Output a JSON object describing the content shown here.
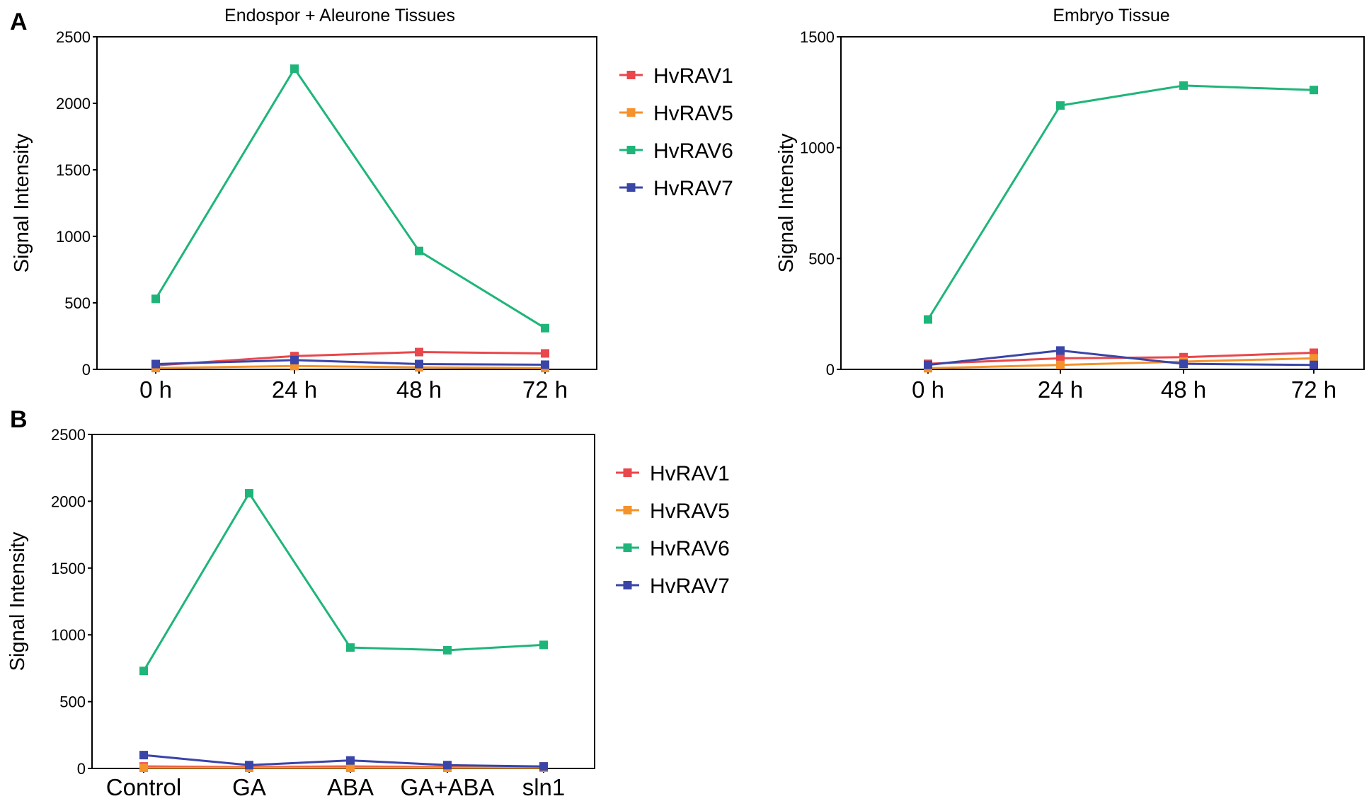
{
  "colors": {
    "HvRAV1": "#e8474b",
    "HvRAV5": "#f5922b",
    "HvRAV6": "#1fb57a",
    "HvRAV7": "#3a45a8"
  },
  "chart_data": [
    {
      "panel": "A",
      "type": "line",
      "title": "Endospor + Aleurone Tissues",
      "xlabel": "",
      "ylabel": "Signal Intensity",
      "categories": [
        "0 h",
        "24 h",
        "48 h",
        "72 h"
      ],
      "ylim": [
        0,
        2500
      ],
      "yticks": [
        0,
        500,
        1000,
        1500,
        2000,
        2500
      ],
      "legend": "right",
      "grid": false,
      "series": [
        {
          "name": "HvRAV1",
          "values": [
            30,
            100,
            130,
            120
          ]
        },
        {
          "name": "HvRAV5",
          "values": [
            10,
            25,
            15,
            10
          ]
        },
        {
          "name": "HvRAV6",
          "values": [
            530,
            2260,
            890,
            310
          ]
        },
        {
          "name": "HvRAV7",
          "values": [
            40,
            70,
            40,
            35
          ]
        }
      ]
    },
    {
      "panel": "",
      "type": "line",
      "title": "Embryo Tissue",
      "xlabel": "",
      "ylabel": "Signal Intensity",
      "categories": [
        "0 h",
        "24 h",
        "48 h",
        "72 h"
      ],
      "ylim": [
        0,
        1500
      ],
      "yticks": [
        0,
        500,
        1000,
        1500
      ],
      "legend": "none",
      "grid": false,
      "series": [
        {
          "name": "HvRAV1",
          "values": [
            25,
            50,
            55,
            75
          ]
        },
        {
          "name": "HvRAV5",
          "values": [
            5,
            20,
            35,
            50
          ]
        },
        {
          "name": "HvRAV6",
          "values": [
            225,
            1190,
            1280,
            1260
          ]
        },
        {
          "name": "HvRAV7",
          "values": [
            20,
            85,
            25,
            20
          ]
        }
      ]
    },
    {
      "panel": "B",
      "type": "line",
      "title": "",
      "xlabel": "",
      "ylabel": "Signal Intensity",
      "categories": [
        "Control",
        "GA",
        "ABA",
        "GA+ABA",
        "sln1"
      ],
      "ylim": [
        0,
        2500
      ],
      "yticks": [
        0,
        500,
        1000,
        1500,
        2000,
        2500
      ],
      "legend": "right",
      "grid": false,
      "series": [
        {
          "name": "HvRAV1",
          "values": [
            15,
            10,
            15,
            10,
            15
          ]
        },
        {
          "name": "HvRAV5",
          "values": [
            5,
            5,
            5,
            5,
            5
          ]
        },
        {
          "name": "HvRAV6",
          "values": [
            730,
            2060,
            905,
            885,
            925
          ]
        },
        {
          "name": "HvRAV7",
          "values": [
            100,
            25,
            60,
            25,
            15
          ]
        }
      ]
    }
  ]
}
